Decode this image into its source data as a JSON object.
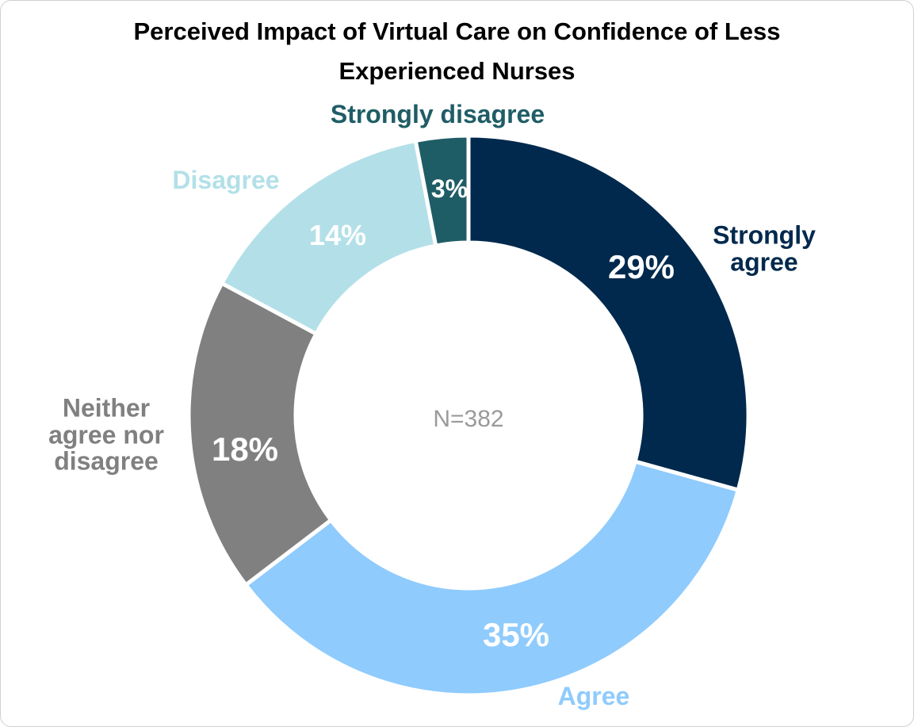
{
  "chart_data": {
    "type": "donut",
    "title": "Perceived Impact of Virtual Care on Confidence of Less Experienced Nurses",
    "annotation": "N=382",
    "categories": [
      "Strongly agree",
      "Agree",
      "Neither agree nor disagree",
      "Disagree",
      "Strongly disagree"
    ],
    "values": [
      29,
      35,
      18,
      14,
      3
    ],
    "value_labels": [
      "29%",
      "35%",
      "18%",
      "14%",
      "3%"
    ],
    "colors": [
      "#00294d",
      "#8fcbfd",
      "#808080",
      "#b3e0e8",
      "#1f5d66"
    ]
  }
}
